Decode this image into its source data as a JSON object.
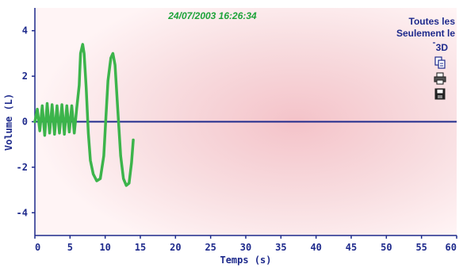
{
  "timestamp": "24/07/2003 16:26:34",
  "menu": {
    "all_label": "Toutes les",
    "only_label": "Seulement le",
    "view3d_label": "3D"
  },
  "icons": [
    "copy-icon",
    "print-icon",
    "save-icon"
  ],
  "chart_data": {
    "type": "line",
    "xlabel": "Temps (s)",
    "ylabel": "Volume (L)",
    "xlim": [
      0,
      60
    ],
    "ylim": [
      -5,
      5
    ],
    "xticks": [
      0,
      5,
      10,
      15,
      20,
      25,
      30,
      35,
      40,
      45,
      50,
      55,
      60
    ],
    "yticks": [
      -4,
      -2,
      0,
      2,
      4
    ],
    "grid": false,
    "zero_line": true,
    "colors": {
      "series": "#3cb44b",
      "axis": "#1e2a8c",
      "zero_line": "#1e2a8c",
      "background": "#f7d5d9"
    },
    "series": [
      {
        "color": "#3cb44b",
        "x": [
          0.0,
          0.35,
          0.7,
          1.05,
          1.4,
          1.75,
          2.1,
          2.45,
          2.8,
          3.15,
          3.5,
          3.85,
          4.2,
          4.55,
          4.9,
          5.25,
          5.6,
          5.95,
          6.3,
          6.5,
          6.8,
          7.0,
          7.3,
          7.6,
          7.9,
          8.3,
          8.8,
          9.3,
          9.8,
          10.1,
          10.4,
          10.8,
          11.1,
          11.4,
          11.8,
          12.2,
          12.6,
          13.0,
          13.4,
          13.75,
          14.0
        ],
        "y": [
          0.0,
          0.55,
          -0.4,
          0.7,
          -0.6,
          0.8,
          -0.5,
          0.75,
          -0.55,
          0.7,
          -0.5,
          0.75,
          -0.55,
          0.7,
          -0.45,
          0.7,
          -0.5,
          0.6,
          1.6,
          3.0,
          3.4,
          3.0,
          1.5,
          -0.5,
          -1.7,
          -2.3,
          -2.6,
          -2.5,
          -1.5,
          0.2,
          1.8,
          2.8,
          3.0,
          2.5,
          0.5,
          -1.5,
          -2.5,
          -2.8,
          -2.7,
          -1.8,
          -0.8
        ]
      }
    ]
  }
}
